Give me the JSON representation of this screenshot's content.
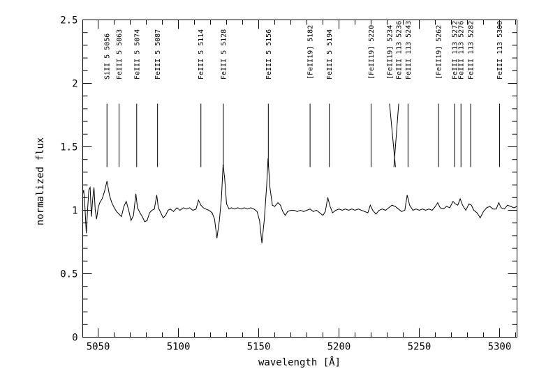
{
  "figure": {
    "background_color": "#ffffff",
    "foreground_color": "#000000"
  },
  "chart_data": {
    "type": "line",
    "title": "",
    "xlabel": "wavelength [Å]",
    "ylabel": "normalized flux",
    "xlim": [
      5040.4,
      5310.9
    ],
    "ylim": [
      0,
      2.5
    ],
    "x_major_ticks": [
      5050,
      5100,
      5150,
      5200,
      5250,
      5300
    ],
    "x_major_tick_labels": [
      "5050",
      "5100",
      "5150",
      "5200",
      "5250",
      "5300"
    ],
    "x_minor_step": 10,
    "y_major_ticks": [
      0,
      0.5,
      1,
      1.5,
      2,
      2.5
    ],
    "y_major_tick_labels": [
      "0",
      "0.5",
      "1",
      "1.5",
      "2",
      "2.5"
    ],
    "y_minor_step": 0.1,
    "grid": false,
    "legend": null,
    "line_markers": {
      "flux_bottom": 1.34,
      "flux_top": 1.84,
      "label_baseline_flux": 2.03,
      "entries": [
        {
          "label": "SiII 5 5056",
          "wavelength": 5055.5
        },
        {
          "label": "FeIII 5 5063",
          "wavelength": 5063
        },
        {
          "label": "FeIII 5 5074",
          "wavelength": 5074
        },
        {
          "label": "FeIII 5 5087",
          "wavelength": 5087
        },
        {
          "label": "FeIII 5 5114",
          "wavelength": 5114
        },
        {
          "label": "FeIII 5 5128",
          "wavelength": 5128
        },
        {
          "label": "FeIII 5 5156",
          "wavelength": 5156
        },
        {
          "label": "[FeII19] 5182",
          "wavelength": 5182
        },
        {
          "label": "FeIII 5 5194",
          "wavelength": 5194
        },
        {
          "label": "[FeII19] 5220",
          "wavelength": 5220
        },
        {
          "label": "[FeII19] 5234",
          "wavelength": 5235.2,
          "label_wavelength": 5231.5
        },
        {
          "label": "FeIII 113 5236",
          "wavelength": 5234.2,
          "label_wavelength": 5237.2
        },
        {
          "label": "FeIII 113 5243",
          "wavelength": 5243
        },
        {
          "label": "[FeII19] 5262",
          "wavelength": 5262
        },
        {
          "label": "FeIII 113 5272",
          "wavelength": 5272
        },
        {
          "label": "FeIII 113 5276",
          "wavelength": 5276
        },
        {
          "label": "FeIII 113 5282",
          "wavelength": 5282
        },
        {
          "label": "FeIII 113 5300",
          "wavelength": 5300
        }
      ]
    },
    "spectrum": [
      [
        5040.4,
        1.13
      ],
      [
        5041.0,
        1.16
      ],
      [
        5041.8,
        1.02
      ],
      [
        5042.6,
        0.82
      ],
      [
        5043.4,
        1.0
      ],
      [
        5044.2,
        1.16
      ],
      [
        5045.0,
        1.18
      ],
      [
        5045.8,
        0.95
      ],
      [
        5046.6,
        1.09
      ],
      [
        5047.4,
        1.18
      ],
      [
        5048.2,
        1.0
      ],
      [
        5049.0,
        0.93
      ],
      [
        5050.0,
        1.02
      ],
      [
        5051.0,
        1.06
      ],
      [
        5052.5,
        1.09
      ],
      [
        5054.0,
        1.15
      ],
      [
        5055.5,
        1.23
      ],
      [
        5057.0,
        1.12
      ],
      [
        5058.5,
        1.06
      ],
      [
        5060.0,
        1.02
      ],
      [
        5061.5,
        0.99
      ],
      [
        5063.0,
        0.97
      ],
      [
        5064.5,
        0.95
      ],
      [
        5066.0,
        1.03
      ],
      [
        5067.5,
        1.07
      ],
      [
        5069.0,
        1.0
      ],
      [
        5070.5,
        0.92
      ],
      [
        5072.0,
        0.96
      ],
      [
        5073.5,
        1.13
      ],
      [
        5074.5,
        1.02
      ],
      [
        5076.0,
        0.98
      ],
      [
        5077.5,
        0.95
      ],
      [
        5079.0,
        0.91
      ],
      [
        5080.5,
        0.92
      ],
      [
        5082.0,
        0.98
      ],
      [
        5083.5,
        1.0
      ],
      [
        5085.0,
        1.01
      ],
      [
        5086.5,
        1.12
      ],
      [
        5087.5,
        1.02
      ],
      [
        5089.0,
        0.98
      ],
      [
        5090.5,
        0.94
      ],
      [
        5092.0,
        0.96
      ],
      [
        5093.5,
        1.0
      ],
      [
        5095.0,
        1.01
      ],
      [
        5097.0,
        0.99
      ],
      [
        5099.0,
        1.02
      ],
      [
        5101.0,
        1.0
      ],
      [
        5103.0,
        1.02
      ],
      [
        5105.0,
        1.01
      ],
      [
        5107.0,
        1.02
      ],
      [
        5109.0,
        1.0
      ],
      [
        5111.0,
        1.01
      ],
      [
        5112.5,
        1.08
      ],
      [
        5114.0,
        1.04
      ],
      [
        5115.5,
        1.02
      ],
      [
        5117.0,
        1.01
      ],
      [
        5119.0,
        1.0
      ],
      [
        5121.0,
        0.98
      ],
      [
        5122.5,
        0.93
      ],
      [
        5124.0,
        0.78
      ],
      [
        5125.5,
        0.92
      ],
      [
        5126.8,
        1.1
      ],
      [
        5127.8,
        1.36
      ],
      [
        5128.8,
        1.25
      ],
      [
        5130.0,
        1.05
      ],
      [
        5131.5,
        1.01
      ],
      [
        5133.0,
        1.02
      ],
      [
        5135.0,
        1.01
      ],
      [
        5137.0,
        1.02
      ],
      [
        5139.0,
        1.01
      ],
      [
        5141.0,
        1.02
      ],
      [
        5143.0,
        1.01
      ],
      [
        5145.0,
        1.02
      ],
      [
        5147.0,
        1.01
      ],
      [
        5149.0,
        0.99
      ],
      [
        5150.5,
        0.92
      ],
      [
        5152.0,
        0.74
      ],
      [
        5153.5,
        0.93
      ],
      [
        5155.0,
        1.2
      ],
      [
        5155.8,
        1.41
      ],
      [
        5157.0,
        1.18
      ],
      [
        5158.5,
        1.04
      ],
      [
        5160.0,
        1.03
      ],
      [
        5162.0,
        1.06
      ],
      [
        5163.5,
        1.04
      ],
      [
        5165.0,
        0.99
      ],
      [
        5166.5,
        0.96
      ],
      [
        5168.0,
        0.99
      ],
      [
        5170.0,
        1.0
      ],
      [
        5172.0,
        1.0
      ],
      [
        5174.0,
        0.99
      ],
      [
        5176.0,
        1.0
      ],
      [
        5178.0,
        0.99
      ],
      [
        5180.0,
        1.0
      ],
      [
        5182.0,
        1.01
      ],
      [
        5184.0,
        0.99
      ],
      [
        5186.0,
        1.0
      ],
      [
        5188.0,
        0.98
      ],
      [
        5190.0,
        0.96
      ],
      [
        5191.5,
        0.99
      ],
      [
        5193.0,
        1.1
      ],
      [
        5194.5,
        1.03
      ],
      [
        5196.0,
        0.98
      ],
      [
        5198.0,
        1.0
      ],
      [
        5200.0,
        1.01
      ],
      [
        5202.0,
        1.0
      ],
      [
        5204.0,
        1.01
      ],
      [
        5206.0,
        1.0
      ],
      [
        5208.0,
        1.01
      ],
      [
        5210.0,
        1.0
      ],
      [
        5212.0,
        1.01
      ],
      [
        5214.0,
        1.0
      ],
      [
        5216.0,
        0.99
      ],
      [
        5218.0,
        0.98
      ],
      [
        5219.5,
        1.04
      ],
      [
        5221.0,
        1.0
      ],
      [
        5223.0,
        0.97
      ],
      [
        5225.0,
        1.0
      ],
      [
        5227.0,
        1.01
      ],
      [
        5229.0,
        1.0
      ],
      [
        5231.0,
        1.02
      ],
      [
        5233.0,
        1.04
      ],
      [
        5235.0,
        1.03
      ],
      [
        5237.0,
        1.01
      ],
      [
        5239.0,
        0.99
      ],
      [
        5241.0,
        1.0
      ],
      [
        5242.5,
        1.12
      ],
      [
        5244.0,
        1.04
      ],
      [
        5246.0,
        1.0
      ],
      [
        5248.0,
        1.01
      ],
      [
        5250.0,
        1.0
      ],
      [
        5252.0,
        1.01
      ],
      [
        5254.0,
        1.0
      ],
      [
        5256.0,
        1.01
      ],
      [
        5258.0,
        1.0
      ],
      [
        5260.0,
        1.03
      ],
      [
        5261.5,
        1.06
      ],
      [
        5263.0,
        1.02
      ],
      [
        5265.0,
        1.01
      ],
      [
        5267.0,
        1.03
      ],
      [
        5269.0,
        1.02
      ],
      [
        5271.0,
        1.07
      ],
      [
        5272.5,
        1.05
      ],
      [
        5274.0,
        1.04
      ],
      [
        5275.5,
        1.09
      ],
      [
        5277.0,
        1.04
      ],
      [
        5279.0,
        1.0
      ],
      [
        5281.0,
        1.05
      ],
      [
        5282.5,
        1.04
      ],
      [
        5284.0,
        1.0
      ],
      [
        5286.0,
        0.98
      ],
      [
        5288.0,
        0.94
      ],
      [
        5290.0,
        0.99
      ],
      [
        5292.0,
        1.02
      ],
      [
        5294.0,
        1.03
      ],
      [
        5296.0,
        1.01
      ],
      [
        5298.0,
        1.01
      ],
      [
        5299.5,
        1.06
      ],
      [
        5301.0,
        1.02
      ],
      [
        5303.0,
        1.01
      ],
      [
        5305.0,
        1.04
      ],
      [
        5307.0,
        1.03
      ],
      [
        5309.0,
        1.02
      ],
      [
        5310.9,
        1.03
      ]
    ]
  }
}
